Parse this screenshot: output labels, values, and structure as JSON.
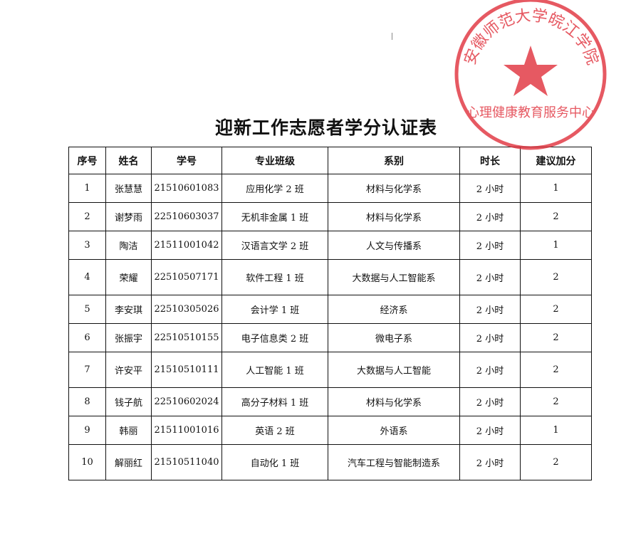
{
  "title": "迎新工作志愿者学分认证表",
  "headers": [
    "序号",
    "姓名",
    "学号",
    "专业班级",
    "系别",
    "时长",
    "建议加分"
  ],
  "rows": [
    [
      "1",
      "张慧慧",
      "21510601083",
      "应用化学 2 班",
      "材料与化学系",
      "2 小时",
      "1"
    ],
    [
      "2",
      "谢梦雨",
      "22510603037",
      "无机非金属 1 班",
      "材料与化学系",
      "2 小时",
      "2"
    ],
    [
      "3",
      "陶洁",
      "21511001042",
      "汉语言文学 2 班",
      "人文与传播系",
      "2 小时",
      "1"
    ],
    [
      "4",
      "荣耀",
      "22510507171",
      "软件工程 1 班",
      "大数据与人工智能系",
      "2 小时",
      "2"
    ],
    [
      "5",
      "李安琪",
      "22510305026",
      "会计学 1 班",
      "经济系",
      "2 小时",
      "2"
    ],
    [
      "6",
      "张振宇",
      "22510510155",
      "电子信息类 2 班",
      "微电子系",
      "2 小时",
      "2"
    ],
    [
      "7",
      "许安平",
      "21510510111",
      "人工智能 1 班",
      "大数据与人工智能",
      "2 小时",
      "2"
    ],
    [
      "8",
      "钱子航",
      "22510602024",
      "高分子材料 1 班",
      "材料与化学系",
      "2 小时",
      "2"
    ],
    [
      "9",
      "韩丽",
      "21511001016",
      "英语 2 班",
      "外语系",
      "2 小时",
      "1"
    ],
    [
      "10",
      "解丽红",
      "21510511040",
      "自动化 1 班",
      "汽车工程与智能制造系",
      "2 小时",
      "2"
    ]
  ],
  "seal": {
    "top_text": "安徽师范大学皖江学院",
    "bottom_text": "心理健康教育服务中心",
    "color": "#e0303c"
  }
}
